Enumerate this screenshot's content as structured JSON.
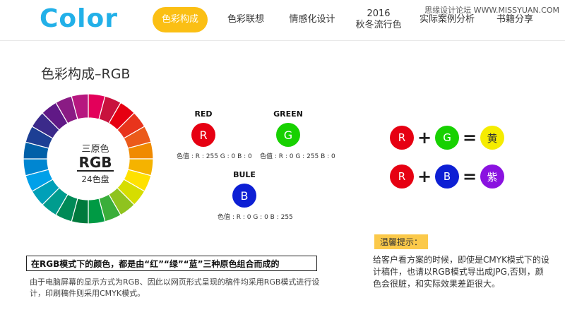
{
  "header": {
    "logo": "Color",
    "watermark": "思缘设计论坛 WWW.MISSYUAN.COM",
    "nav": [
      {
        "label": "色彩构成",
        "active": true
      },
      {
        "label": "色彩联想",
        "active": false
      },
      {
        "label": "情感化设计",
        "active": false
      },
      {
        "label_line1": "2016",
        "label_line2": "秋冬流行色",
        "active": false
      },
      {
        "label": "实际案例分析",
        "active": false
      },
      {
        "label": "书籍分享",
        "active": false
      }
    ]
  },
  "section": {
    "title": "色彩构成–RGB"
  },
  "wheel": {
    "top": "三原色",
    "middle": "RGB",
    "bottom": "24色盘",
    "segments": [
      "#e3005a",
      "#c8123d",
      "#e60012",
      "#e8341c",
      "#eb5a1a",
      "#f08a00",
      "#f5b300",
      "#ffe100",
      "#d6dd00",
      "#8fc31f",
      "#3aae3a",
      "#009a44",
      "#007a3d",
      "#008a57",
      "#009c8e",
      "#00a0b8",
      "#00a0e9",
      "#0086d1",
      "#0060a8",
      "#1d3f94",
      "#3b2a8a",
      "#601986",
      "#8a1b84",
      "#b6177f"
    ]
  },
  "primaries": {
    "red": {
      "name": "RED",
      "letter": "R",
      "value": "色值 : R : 255 G : 0 B : 0",
      "color": "#e60012"
    },
    "green": {
      "name": "GREEN",
      "letter": "G",
      "value": "色值 : R : 0 G : 255 B : 0",
      "color": "#17d100"
    },
    "blue": {
      "name": "BULE",
      "letter": "B",
      "value": "色值 : R : 0 G : 0 B : 255",
      "color": "#0d1fd4"
    }
  },
  "equations": [
    {
      "a": "R",
      "a_color": "#e60012",
      "op": "+",
      "b": "G",
      "b_color": "#17d100",
      "eq": "=",
      "result": "黄",
      "result_color": "#f5ec00",
      "result_text_color": "#333333"
    },
    {
      "a": "R",
      "a_color": "#e60012",
      "op": "+",
      "b": "B",
      "b_color": "#0d1fd4",
      "eq": "=",
      "result": "紫",
      "result_color": "#8a12e0",
      "result_text_color": "#ffffff"
    }
  ],
  "tip": {
    "label": "温馨提示：",
    "text": "给客户看方案的时候，即使是CMYK模式下的设计稿件，也请以RGB模式导出成JPG,否则，颜色会很脏，和实际效果差距很大。"
  },
  "boxed_note": "在RGB模式下的颜色，都是由“红”“绿”“蓝”三种原色组合而成的",
  "note": "由于电脑屏幕的显示方式为RGB、因此以网页形式呈现的稿件均采用RGB模式进行设计，印刷稿件则采用CMYK模式。"
}
